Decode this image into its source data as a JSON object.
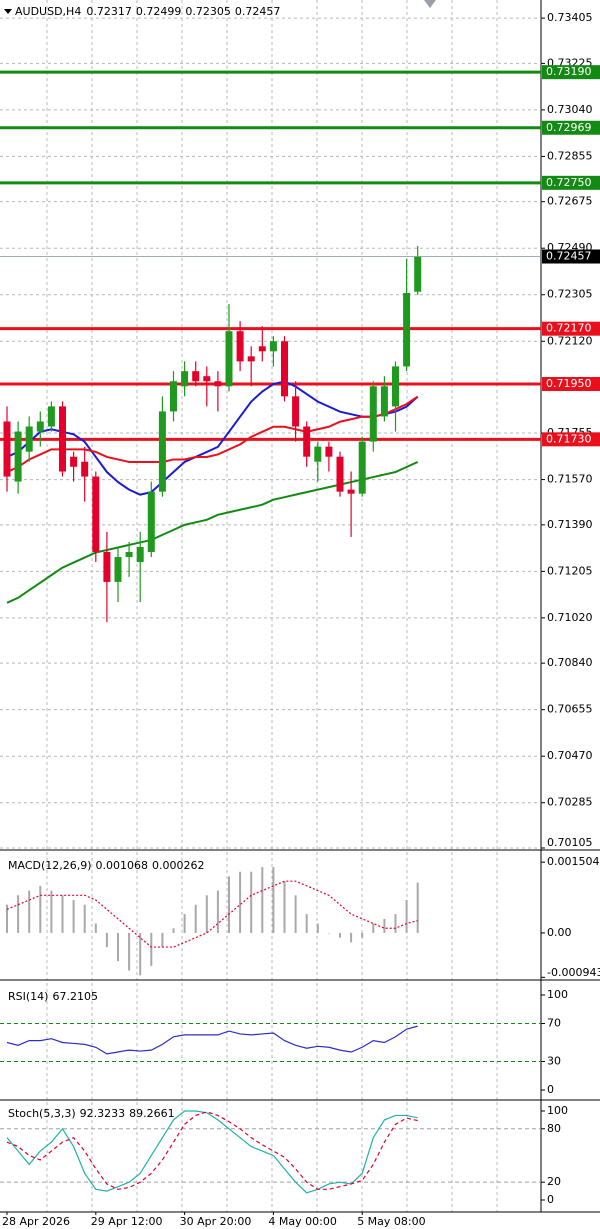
{
  "chart_data": [
    {
      "type": "candlestick",
      "title": "AUDUSD,H4",
      "open": [
        0.71801,
        0.71562,
        0.71681,
        0.71761,
        0.71781,
        0.71861,
        0.71661,
        0.71641,
        0.71582,
        0.71282,
        0.71163,
        0.71262,
        0.71242,
        0.71282,
        0.71522,
        0.71841,
        0.71941,
        0.72001,
        0.71981,
        0.71961,
        0.71941,
        0.7216,
        0.7206,
        0.721,
        0.7208,
        0.7212,
        0.71901,
        0.71781,
        0.71641,
        0.71701,
        0.71661,
        0.7153,
        0.71514,
        0.71721,
        0.71821,
        0.71861,
        0.7202,
        0.72317
      ],
      "high": [
        0.71861,
        0.71801,
        0.71821,
        0.71841,
        0.71881,
        0.71881,
        0.71681,
        0.71701,
        0.71602,
        0.71362,
        0.71302,
        0.71322,
        0.71362,
        0.71562,
        0.71901,
        0.72001,
        0.7204,
        0.7204,
        0.7202,
        0.72001,
        0.72268,
        0.722,
        0.721,
        0.7218,
        0.7214,
        0.7214,
        0.71961,
        0.71801,
        0.71721,
        0.71721,
        0.71681,
        0.71602,
        0.71741,
        0.71961,
        0.71981,
        0.7204,
        0.72447,
        0.72499
      ],
      "low": [
        0.71522,
        0.71514,
        0.71641,
        0.71701,
        0.71761,
        0.71582,
        0.71562,
        0.71482,
        0.71242,
        0.71003,
        0.71083,
        0.71183,
        0.71083,
        0.71262,
        0.71502,
        0.71801,
        0.71901,
        0.71941,
        0.71861,
        0.71841,
        0.71921,
        0.72001,
        0.71941,
        0.7204,
        0.7202,
        0.71881,
        0.71721,
        0.71621,
        0.71562,
        0.71602,
        0.71502,
        0.71342,
        0.71502,
        0.71681,
        0.71801,
        0.71761,
        0.72001,
        0.72305
      ],
      "close": [
        0.71582,
        0.71761,
        0.71781,
        0.71801,
        0.71861,
        0.71602,
        0.71621,
        0.71582,
        0.71282,
        0.71163,
        0.71262,
        0.71282,
        0.71302,
        0.71522,
        0.71841,
        0.71961,
        0.72001,
        0.71961,
        0.71961,
        0.71941,
        0.7216,
        0.7204,
        0.7204,
        0.7208,
        0.7212,
        0.71901,
        0.71781,
        0.71661,
        0.71701,
        0.71661,
        0.71522,
        0.71514,
        0.71721,
        0.71941,
        0.71941,
        0.7202,
        0.72312,
        0.72457
      ],
      "up_color": "#1f9a1f",
      "down_color": "#e4002b",
      "series": [
        {
          "color": "#1a1ad8",
          "values": [
            0.7166,
            0.7168,
            0.7172,
            0.7176,
            0.7177,
            0.7176,
            0.7175,
            0.7172,
            0.7166,
            0.716,
            0.7156,
            0.7153,
            0.7151,
            0.7152,
            0.7156,
            0.716,
            0.7164,
            0.7166,
            0.7168,
            0.717,
            0.7176,
            0.7182,
            0.7188,
            0.7192,
            0.7195,
            0.7196,
            0.7194,
            0.7191,
            0.7188,
            0.7186,
            0.7184,
            0.7183,
            0.7182,
            0.7182,
            0.7183,
            0.7184,
            0.7186,
            0.719
          ]
        },
        {
          "color": "#e8101c",
          "values": [
            0.716,
            0.7162,
            0.7165,
            0.7167,
            0.7169,
            0.7169,
            0.7169,
            0.7169,
            0.7168,
            0.7166,
            0.7165,
            0.7164,
            0.7164,
            0.7164,
            0.7164,
            0.7165,
            0.7165,
            0.7166,
            0.7166,
            0.7167,
            0.7169,
            0.7171,
            0.7174,
            0.7176,
            0.7178,
            0.7178,
            0.7177,
            0.7176,
            0.7177,
            0.7178,
            0.718,
            0.7181,
            0.7182,
            0.7182,
            0.7183,
            0.7185,
            0.7187,
            0.719
          ]
        },
        {
          "color": "#138a13",
          "values": [
            0.7108,
            0.711,
            0.7113,
            0.7116,
            0.7119,
            0.7122,
            0.7124,
            0.7126,
            0.7128,
            0.7129,
            0.713,
            0.7131,
            0.7132,
            0.7133,
            0.7135,
            0.7137,
            0.7139,
            0.714,
            0.7141,
            0.7143,
            0.7144,
            0.7145,
            0.7146,
            0.7147,
            0.7149,
            0.715,
            0.7151,
            0.7152,
            0.7153,
            0.7154,
            0.7155,
            0.7156,
            0.7157,
            0.7158,
            0.7159,
            0.716,
            0.7162,
            0.7164
          ]
        }
      ],
      "levels": [
        {
          "value": 0.7319,
          "label": "0.73190",
          "color": "#138a13"
        },
        {
          "value": 0.72969,
          "color": "#138a13"
        },
        {
          "value": 0.7275,
          "label": "0.72750",
          "color": "#138a13"
        },
        {
          "value": 0.7217,
          "label": "0.72170",
          "color": "#e8101c"
        },
        {
          "value": 0.7195,
          "label": "0.71950",
          "color": "#e8101c"
        },
        {
          "value": 0.7173,
          "label": "0.71730",
          "color": "#e8101c"
        }
      ],
      "ylim": [
        0.70097,
        0.73477
      ],
      "yticks": [
        0.73405,
        0.73225,
        {
          "value": 0.7304,
          "label": "0.73040"
        },
        0.72855,
        0.72675,
        {
          "value": 0.7249,
          "label": "0.72490"
        },
        0.72305,
        {
          "value": 0.7212,
          "label": "0.72120"
        },
        0.71755,
        {
          "value": 0.7157,
          "label": "0.71570"
        },
        {
          "value": 0.7139,
          "label": "0.71390"
        },
        0.71205,
        {
          "value": 0.7102,
          "label": "0.71020"
        },
        {
          "value": 0.7084,
          "label": "0.70840"
        },
        0.70655,
        {
          "value": 0.7047,
          "label": "0.70470"
        },
        0.70285,
        0.70105
      ],
      "grid": true
    },
    {
      "type": "bar",
      "title": "MACD(12,26,9)",
      "series": [
        {
          "type": "bar",
          "color": "#a8a8a8",
          "values": [
            0.0006,
            0.0008,
            0.0009,
            0.001,
            0.0009,
            0.0008,
            0.0007,
            0.0006,
            0.0002,
            -0.0003,
            -0.0006,
            -0.0008,
            -0.0009,
            -0.0007,
            -0.0003,
            0.0001,
            0.0004,
            0.0006,
            0.0008,
            0.0009,
            0.0012,
            0.0013,
            0.0013,
            0.0014,
            0.0014,
            0.0011,
            0.0008,
            0.0004,
            0.0002,
            0.0,
            -0.0001,
            -0.0002,
            -0.0001,
            0.0002,
            0.0003,
            0.0004,
            0.0007,
            0.001068
          ]
        },
        {
          "type": "line",
          "color": "#e4002b",
          "dash": "2,2",
          "values": [
            0.0005,
            0.0006,
            0.0007,
            0.0008,
            0.0008,
            0.0008,
            0.0008,
            0.0008,
            0.0007,
            0.0005,
            0.0003,
            0.0001,
            -0.0001,
            -0.0003,
            -0.0003,
            -0.0003,
            -0.0002,
            -0.0001,
            0.0,
            0.0002,
            0.0004,
            0.0006,
            0.0008,
            0.0009,
            0.001,
            0.0011,
            0.0011,
            0.001,
            0.0009,
            0.0008,
            0.0006,
            0.0004,
            0.0003,
            0.0002,
            0.0001,
            0.0001,
            0.0002,
            0.000262
          ]
        }
      ],
      "ylim": [
        -0.001,
        0.00172
      ],
      "yticks": [
        0.001504,
        {
          "value": 0,
          "label": "0.00"
        },
        -0.000943
      ]
    },
    {
      "type": "line",
      "title": "RSI(14)",
      "series": [
        {
          "type": "line",
          "color": "#2c2cc8",
          "values": [
            50,
            47,
            52,
            52,
            54,
            50,
            49,
            48,
            45,
            38,
            40,
            42,
            41,
            42,
            48,
            56,
            58,
            58,
            58,
            58,
            62,
            59,
            58,
            59,
            60,
            52,
            47,
            44,
            46,
            45,
            42,
            40,
            45,
            52,
            50,
            56,
            64,
            67.2105
          ]
        }
      ],
      "levels": [
        {
          "value": 70,
          "color": "#138a13"
        },
        {
          "value": 30,
          "color": "#138a13"
        }
      ],
      "ylim": [
        -10.5,
        112.6
      ],
      "yticks": [
        100,
        70,
        30,
        0
      ]
    },
    {
      "type": "line",
      "title": "Stoch(5,3,3)",
      "series": [
        {
          "type": "line",
          "color": "#20b2aa",
          "values": [
            70,
            55,
            40,
            55,
            65,
            80,
            60,
            30,
            12,
            10,
            15,
            20,
            30,
            50,
            70,
            90,
            100,
            100,
            98,
            90,
            80,
            70,
            60,
            55,
            50,
            35,
            20,
            8,
            12,
            18,
            20,
            18,
            30,
            70,
            90,
            95,
            95,
            92.3233
          ]
        },
        {
          "type": "line",
          "color": "#e4002b",
          "dash": "4,3",
          "values": [
            65,
            60,
            50,
            45,
            55,
            65,
            70,
            55,
            35,
            18,
            12,
            14,
            20,
            30,
            45,
            65,
            85,
            95,
            99,
            95,
            88,
            80,
            70,
            62,
            55,
            48,
            35,
            20,
            12,
            12,
            15,
            18,
            22,
            40,
            65,
            85,
            92,
            89.2661
          ]
        }
      ],
      "levels": [
        {
          "value": 80,
          "color": "#a0a0a0"
        },
        {
          "value": 20,
          "color": "#a0a0a0"
        }
      ],
      "ylim": [
        -13.5,
        110.1
      ],
      "yticks": [
        100,
        80,
        20,
        0
      ],
      "categories": [
        "28 Apr 2026",
        null,
        null,
        null,
        null,
        null,
        null,
        null,
        "29 Apr 12:00",
        null,
        null,
        null,
        null,
        null,
        null,
        null,
        "30 Apr 20:00",
        null,
        null,
        null,
        null,
        null,
        null,
        null,
        "4 May 00:00",
        null,
        null,
        null,
        null,
        null,
        null,
        null,
        "5 May 08:00",
        null,
        null,
        null,
        null,
        null
      ]
    }
  ]
}
